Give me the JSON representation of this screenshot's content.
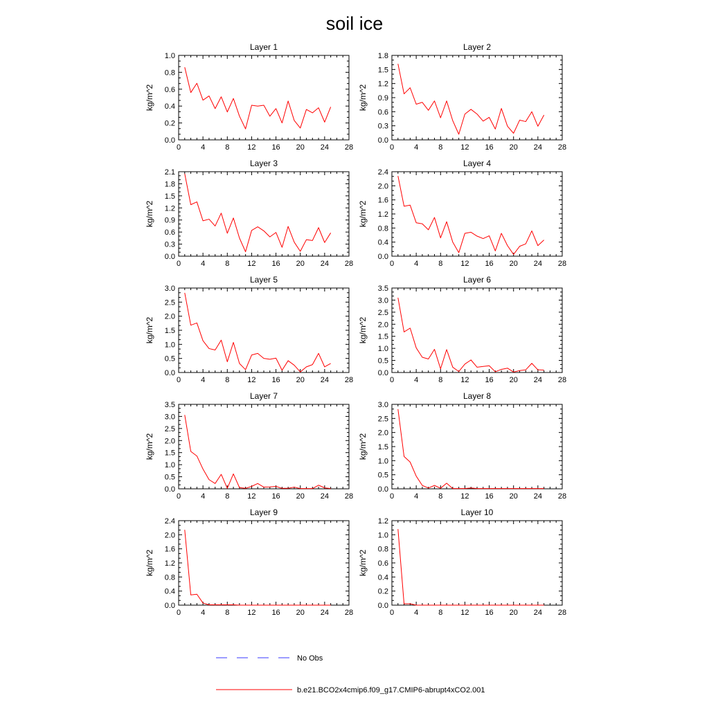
{
  "figure": {
    "title": "soil ice",
    "legend": [
      {
        "label": "No Obs",
        "color": "#3a3aff",
        "dash": true
      },
      {
        "label": "b.e21.BCO2x4cmip6.f09_g17.CMIP6-abrupt4xCO2.001",
        "color": "#ff0000",
        "dash": false
      }
    ]
  },
  "chart_data": [
    {
      "type": "line",
      "title": "Layer 1",
      "ylabel": "kg/m^2",
      "xlim": [
        0,
        28
      ],
      "ylim": [
        0,
        1.0
      ],
      "xticks": [
        0,
        4,
        8,
        12,
        16,
        20,
        24,
        28
      ],
      "yticks": [
        0.0,
        0.2,
        0.4,
        0.6,
        0.8,
        1.0
      ],
      "ytick_decimals": 1,
      "x": [
        1,
        2,
        3,
        4,
        5,
        6,
        7,
        8,
        9,
        10,
        11,
        12,
        13,
        14,
        15,
        16,
        17,
        18,
        19,
        20,
        21,
        22,
        23,
        24,
        25
      ],
      "series": [
        {
          "name": "b.e21.BCO2x4cmip6.f09_g17.CMIP6-abrupt4xCO2.001",
          "color": "#ff0000",
          "values": [
            0.86,
            0.56,
            0.67,
            0.47,
            0.52,
            0.37,
            0.51,
            0.33,
            0.49,
            0.28,
            0.13,
            0.41,
            0.4,
            0.41,
            0.28,
            0.37,
            0.2,
            0.46,
            0.23,
            0.14,
            0.36,
            0.32,
            0.38,
            0.21,
            0.39
          ]
        }
      ]
    },
    {
      "type": "line",
      "title": "Layer 2",
      "ylabel": "kg/m^2",
      "xlim": [
        0,
        28
      ],
      "ylim": [
        0,
        1.8
      ],
      "xticks": [
        0,
        4,
        8,
        12,
        16,
        20,
        24,
        28
      ],
      "yticks": [
        0.0,
        0.3,
        0.6,
        0.9,
        1.2,
        1.5,
        1.8
      ],
      "ytick_decimals": 1,
      "x": [
        1,
        2,
        3,
        4,
        5,
        6,
        7,
        8,
        9,
        10,
        11,
        12,
        13,
        14,
        15,
        16,
        17,
        18,
        19,
        20,
        21,
        22,
        23,
        24,
        25
      ],
      "series": [
        {
          "name": "b.e21.BCO2x4cmip6.f09_g17.CMIP6-abrupt4xCO2.001",
          "color": "#ff0000",
          "values": [
            1.62,
            0.98,
            1.11,
            0.76,
            0.8,
            0.63,
            0.83,
            0.47,
            0.83,
            0.41,
            0.12,
            0.55,
            0.65,
            0.55,
            0.4,
            0.48,
            0.23,
            0.67,
            0.29,
            0.14,
            0.42,
            0.39,
            0.6,
            0.29,
            0.53
          ]
        }
      ]
    },
    {
      "type": "line",
      "title": "Layer 3",
      "ylabel": "kg/m^2",
      "xlim": [
        0,
        28
      ],
      "ylim": [
        0,
        2.1
      ],
      "xticks": [
        0,
        4,
        8,
        12,
        16,
        20,
        24,
        28
      ],
      "yticks": [
        0.0,
        0.3,
        0.6,
        0.9,
        1.2,
        1.5,
        1.8,
        2.1
      ],
      "ytick_decimals": 1,
      "x": [
        1,
        2,
        3,
        4,
        5,
        6,
        7,
        8,
        9,
        10,
        11,
        12,
        13,
        14,
        15,
        16,
        17,
        18,
        19,
        20,
        21,
        22,
        23,
        24,
        25
      ],
      "series": [
        {
          "name": "b.e21.BCO2x4cmip6.f09_g17.CMIP6-abrupt4xCO2.001",
          "color": "#ff0000",
          "values": [
            2.05,
            1.28,
            1.35,
            0.88,
            0.92,
            0.75,
            1.07,
            0.57,
            0.95,
            0.45,
            0.11,
            0.64,
            0.73,
            0.63,
            0.48,
            0.59,
            0.22,
            0.74,
            0.35,
            0.12,
            0.41,
            0.39,
            0.71,
            0.34,
            0.58
          ]
        }
      ]
    },
    {
      "type": "line",
      "title": "Layer 4",
      "ylabel": "kg/m^2",
      "xlim": [
        0,
        28
      ],
      "ylim": [
        0,
        2.4
      ],
      "xticks": [
        0,
        4,
        8,
        12,
        16,
        20,
        24,
        28
      ],
      "yticks": [
        0.0,
        0.4,
        0.8,
        1.2,
        1.6,
        2.0,
        2.4
      ],
      "ytick_decimals": 1,
      "x": [
        1,
        2,
        3,
        4,
        5,
        6,
        7,
        8,
        9,
        10,
        11,
        12,
        13,
        14,
        15,
        16,
        17,
        18,
        19,
        20,
        21,
        22,
        23,
        24,
        25
      ],
      "series": [
        {
          "name": "b.e21.BCO2x4cmip6.f09_g17.CMIP6-abrupt4xCO2.001",
          "color": "#ff0000",
          "values": [
            2.28,
            1.42,
            1.45,
            0.95,
            0.92,
            0.75,
            1.1,
            0.52,
            0.98,
            0.4,
            0.1,
            0.65,
            0.68,
            0.57,
            0.5,
            0.58,
            0.15,
            0.65,
            0.3,
            0.05,
            0.28,
            0.35,
            0.72,
            0.3,
            0.46
          ]
        }
      ]
    },
    {
      "type": "line",
      "title": "Layer 5",
      "ylabel": "kg/m^2",
      "xlim": [
        0,
        28
      ],
      "ylim": [
        0,
        3.0
      ],
      "xticks": [
        0,
        4,
        8,
        12,
        16,
        20,
        24,
        28
      ],
      "yticks": [
        0.0,
        0.5,
        1.0,
        1.5,
        2.0,
        2.5,
        3.0
      ],
      "ytick_decimals": 1,
      "x": [
        1,
        2,
        3,
        4,
        5,
        6,
        7,
        8,
        9,
        10,
        11,
        12,
        13,
        14,
        15,
        16,
        17,
        18,
        19,
        20,
        21,
        22,
        23,
        24,
        25
      ],
      "series": [
        {
          "name": "b.e21.BCO2x4cmip6.f09_g17.CMIP6-abrupt4xCO2.001",
          "color": "#ff0000",
          "values": [
            2.83,
            1.68,
            1.76,
            1.13,
            0.85,
            0.8,
            1.15,
            0.38,
            1.07,
            0.32,
            0.1,
            0.62,
            0.68,
            0.5,
            0.47,
            0.51,
            0.08,
            0.42,
            0.26,
            0.02,
            0.2,
            0.28,
            0.68,
            0.2,
            0.32
          ]
        }
      ]
    },
    {
      "type": "line",
      "title": "Layer 6",
      "ylabel": "kg/m^2",
      "xlim": [
        0,
        28
      ],
      "ylim": [
        0,
        3.5
      ],
      "xticks": [
        0,
        4,
        8,
        12,
        16,
        20,
        24,
        28
      ],
      "yticks": [
        0.0,
        0.5,
        1.0,
        1.5,
        2.0,
        2.5,
        3.0,
        3.5
      ],
      "ytick_decimals": 1,
      "x": [
        1,
        2,
        3,
        4,
        5,
        6,
        7,
        8,
        9,
        10,
        11,
        12,
        13,
        14,
        15,
        16,
        17,
        18,
        19,
        20,
        21,
        22,
        23,
        24,
        25
      ],
      "series": [
        {
          "name": "b.e21.BCO2x4cmip6.f09_g17.CMIP6-abrupt4xCO2.001",
          "color": "#ff0000",
          "values": [
            3.1,
            1.68,
            1.84,
            1.02,
            0.63,
            0.56,
            0.96,
            0.15,
            0.95,
            0.22,
            0.04,
            0.35,
            0.52,
            0.22,
            0.25,
            0.28,
            0.03,
            0.13,
            0.18,
            0.02,
            0.08,
            0.11,
            0.38,
            0.11,
            0.1
          ]
        }
      ]
    },
    {
      "type": "line",
      "title": "Layer 7",
      "ylabel": "kg/m^2",
      "xlim": [
        0,
        28
      ],
      "ylim": [
        0,
        3.5
      ],
      "xticks": [
        0,
        4,
        8,
        12,
        16,
        20,
        24,
        28
      ],
      "yticks": [
        0.0,
        0.5,
        1.0,
        1.5,
        2.0,
        2.5,
        3.0,
        3.5
      ],
      "ytick_decimals": 1,
      "x": [
        1,
        2,
        3,
        4,
        5,
        6,
        7,
        8,
        9,
        10,
        11,
        12,
        13,
        14,
        15,
        16,
        17,
        18,
        19,
        20,
        21,
        22,
        23,
        24,
        25
      ],
      "series": [
        {
          "name": "b.e21.BCO2x4cmip6.f09_g17.CMIP6-abrupt4xCO2.001",
          "color": "#ff0000",
          "values": [
            3.06,
            1.55,
            1.36,
            0.82,
            0.38,
            0.22,
            0.6,
            0.02,
            0.62,
            0.05,
            0.02,
            0.1,
            0.22,
            0.07,
            0.08,
            0.1,
            0.02,
            0.02,
            0.07,
            0.01,
            0.01,
            0.01,
            0.15,
            0.04,
            0.01
          ]
        }
      ]
    },
    {
      "type": "line",
      "title": "Layer 8",
      "ylabel": "kg/m^2",
      "xlim": [
        0,
        28
      ],
      "ylim": [
        0,
        3.0
      ],
      "xticks": [
        0,
        4,
        8,
        12,
        16,
        20,
        24,
        28
      ],
      "yticks": [
        0.0,
        0.5,
        1.0,
        1.5,
        2.0,
        2.5,
        3.0
      ],
      "ytick_decimals": 1,
      "x": [
        1,
        2,
        3,
        4,
        5,
        6,
        7,
        8,
        9,
        10,
        11,
        12,
        13,
        14,
        15,
        16,
        17,
        18,
        19,
        20,
        21,
        22,
        23,
        24,
        25
      ],
      "series": [
        {
          "name": "b.e21.BCO2x4cmip6.f09_g17.CMIP6-abrupt4xCO2.001",
          "color": "#ff0000",
          "values": [
            2.83,
            1.15,
            0.95,
            0.45,
            0.12,
            0.03,
            0.12,
            0.02,
            0.2,
            0.01,
            0.01,
            0.01,
            0.03,
            0.01,
            0.01,
            0.01,
            0.01,
            0.01,
            0.01,
            0.01,
            0.01,
            0.01,
            0.01,
            0.01,
            0.01
          ]
        }
      ]
    },
    {
      "type": "line",
      "title": "Layer 9",
      "ylabel": "kg/m^2",
      "xlim": [
        0,
        28
      ],
      "ylim": [
        0,
        2.4
      ],
      "xticks": [
        0,
        4,
        8,
        12,
        16,
        20,
        24,
        28
      ],
      "yticks": [
        0.0,
        0.4,
        0.8,
        1.2,
        1.6,
        2.0,
        2.4
      ],
      "ytick_decimals": 1,
      "x": [
        1,
        2,
        3,
        4,
        5,
        6,
        7,
        8,
        9,
        10,
        11,
        12,
        13,
        14,
        15,
        16,
        17,
        18,
        19,
        20,
        21,
        22,
        23,
        24,
        25
      ],
      "series": [
        {
          "name": "b.e21.BCO2x4cmip6.f09_g17.CMIP6-abrupt4xCO2.001",
          "color": "#ff0000",
          "values": [
            2.14,
            0.29,
            0.31,
            0.06,
            0.01,
            0.01,
            0.01,
            0.01,
            0.01,
            0.0,
            0.0,
            0.0,
            0.0,
            0.0,
            0.0,
            0.0,
            0.0,
            0.0,
            0.0,
            0.0,
            0.0,
            0.0,
            0.0,
            0.0,
            0.0
          ]
        }
      ]
    },
    {
      "type": "line",
      "title": "Layer 10",
      "ylabel": "kg/m^2",
      "xlim": [
        0,
        28
      ],
      "ylim": [
        0,
        1.2
      ],
      "xticks": [
        0,
        4,
        8,
        12,
        16,
        20,
        24,
        28
      ],
      "yticks": [
        0.0,
        0.2,
        0.4,
        0.6,
        0.8,
        1.0,
        1.2
      ],
      "ytick_decimals": 1,
      "x": [
        1,
        2,
        3,
        4,
        5,
        6,
        7,
        8,
        9,
        10,
        11,
        12,
        13,
        14,
        15,
        16,
        17,
        18,
        19,
        20,
        21,
        22,
        23,
        24,
        25
      ],
      "series": [
        {
          "name": "b.e21.BCO2x4cmip6.f09_g17.CMIP6-abrupt4xCO2.001",
          "color": "#ff0000",
          "values": [
            1.08,
            0.02,
            0.02,
            0.0,
            0.0,
            0.0,
            0.0,
            0.0,
            0.0,
            0.0,
            0.0,
            0.0,
            0.0,
            0.0,
            0.0,
            0.0,
            0.0,
            0.0,
            0.0,
            0.0,
            0.0,
            0.0,
            0.0,
            0.0,
            0.0
          ]
        }
      ]
    }
  ]
}
